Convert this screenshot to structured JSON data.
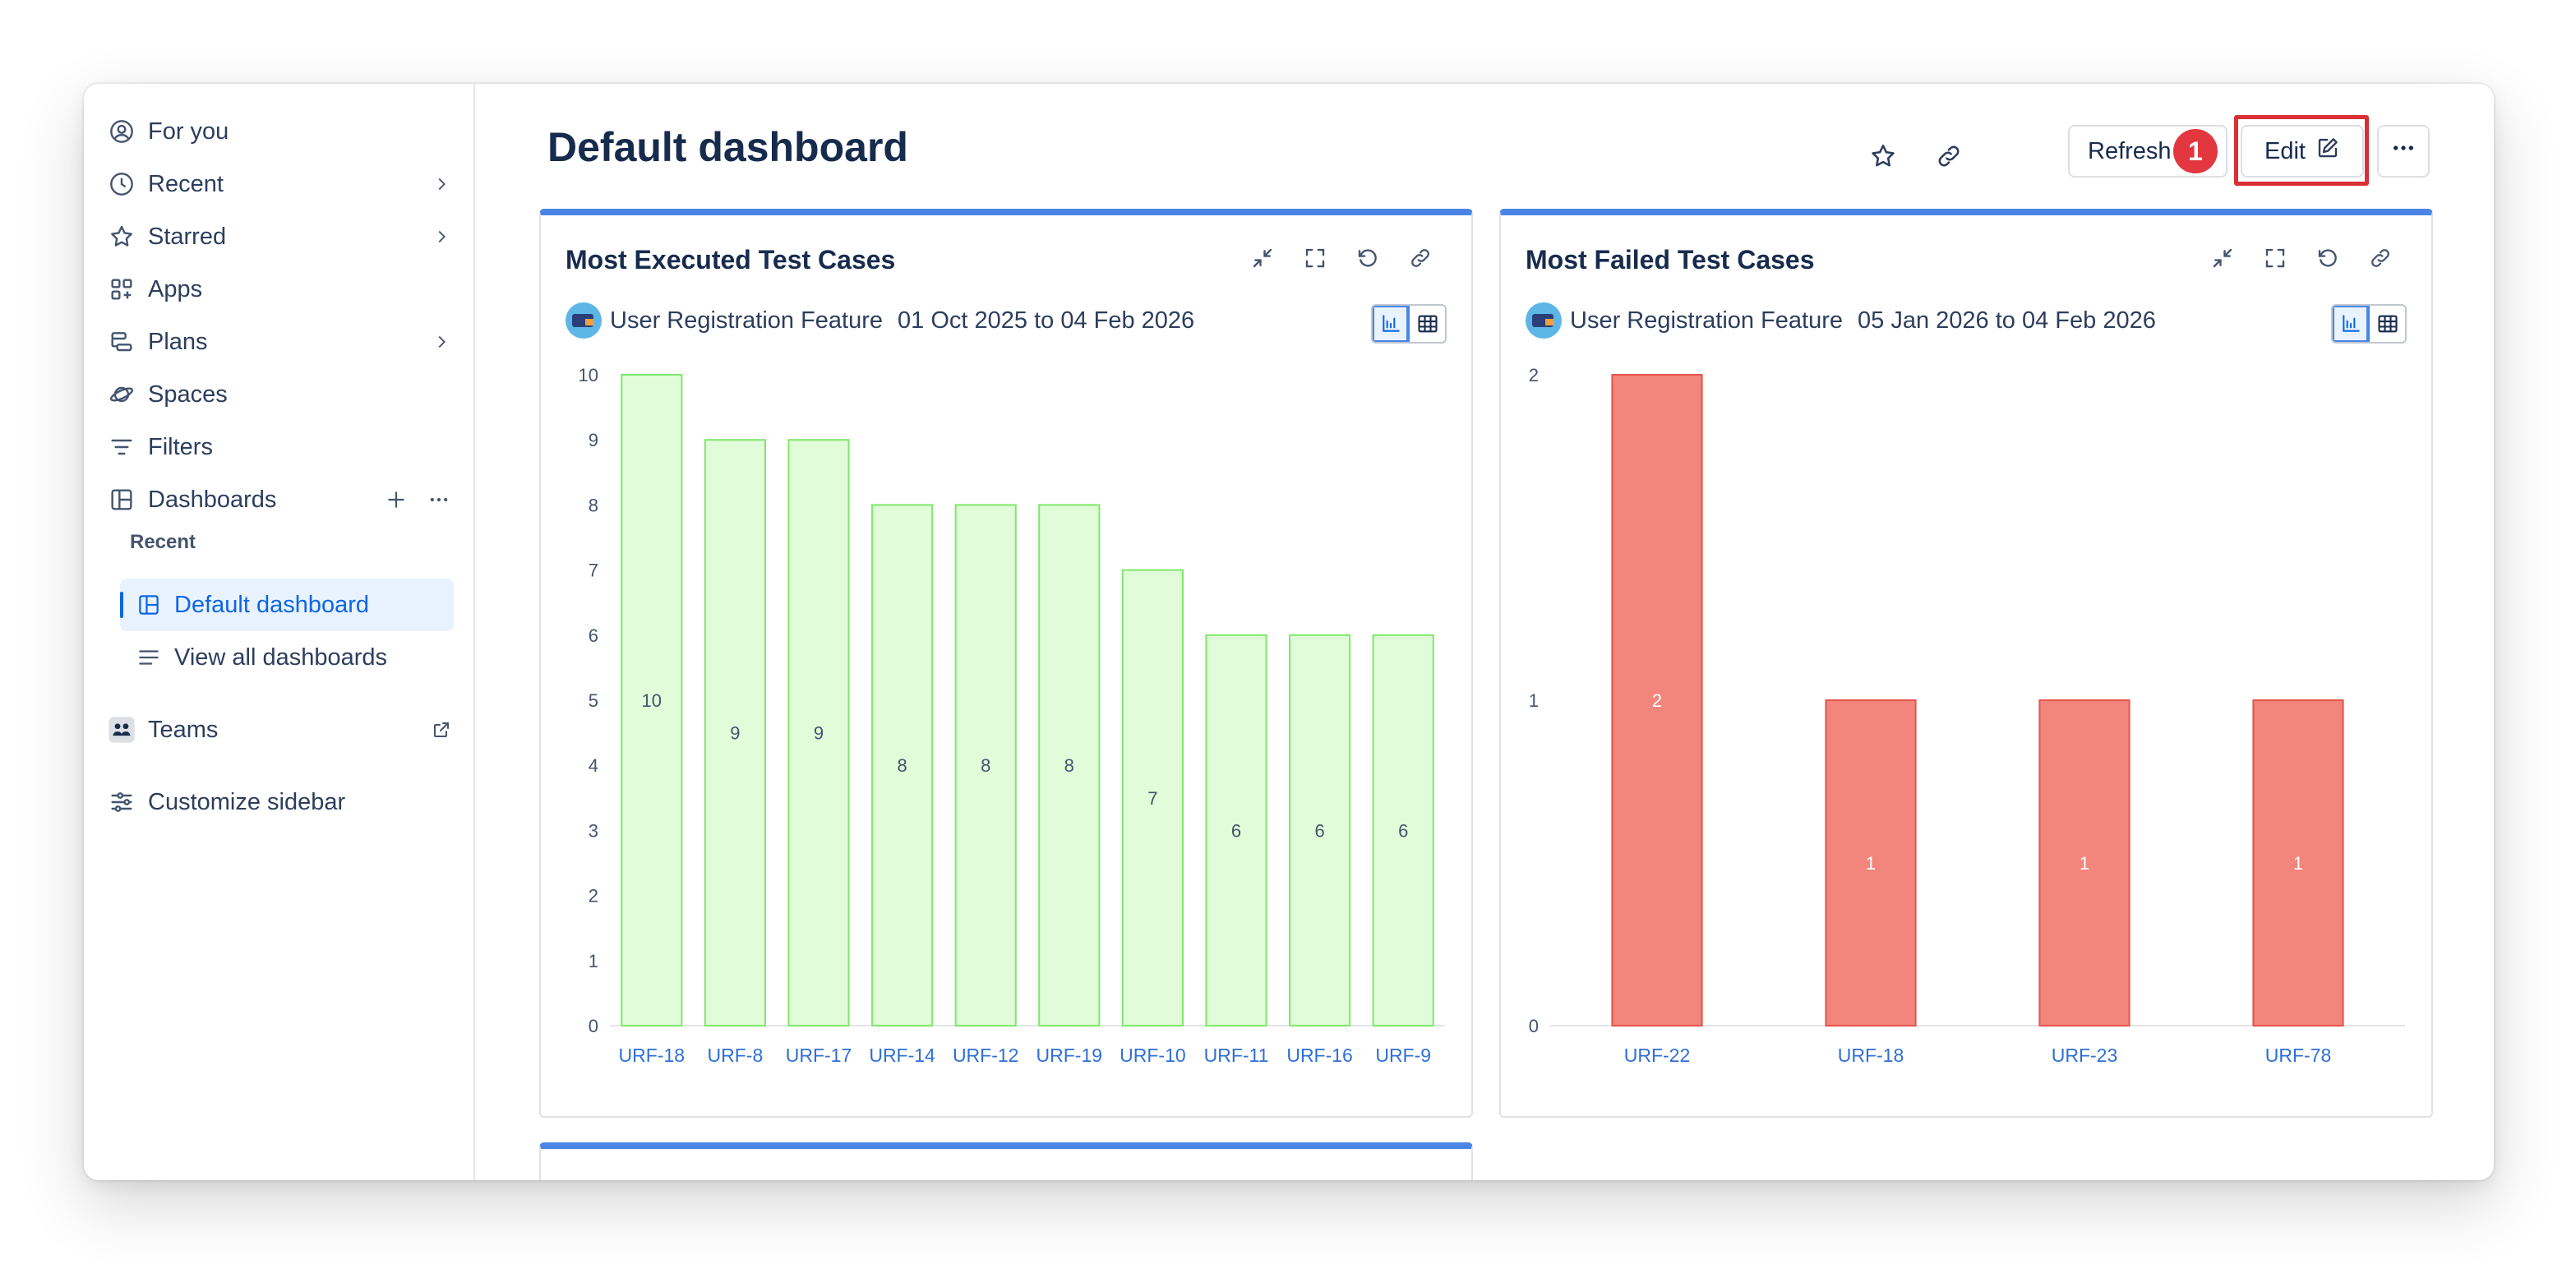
{
  "sidebar": {
    "items": [
      {
        "label": "For you",
        "icon": "user-circle-icon"
      },
      {
        "label": "Recent",
        "icon": "clock-icon"
      },
      {
        "label": "Starred",
        "icon": "star-icon"
      },
      {
        "label": "Apps",
        "icon": "apps-icon"
      },
      {
        "label": "Plans",
        "icon": "plans-icon"
      },
      {
        "label": "Spaces",
        "icon": "spaces-icon"
      },
      {
        "label": "Filters",
        "icon": "filter-icon"
      },
      {
        "label": "Dashboards",
        "icon": "dashboard-icon"
      }
    ],
    "recent_label": "Recent",
    "sub_items": [
      {
        "label": "Default dashboard",
        "icon": "dashboard-icon"
      },
      {
        "label": "View all dashboards",
        "icon": "list-icon"
      }
    ],
    "teams": "Teams",
    "customize": "Customize sidebar"
  },
  "header": {
    "title": "Default dashboard",
    "refresh_label": "Refresh",
    "edit_label": "Edit",
    "badge": "1"
  },
  "cards": [
    {
      "title": "Most Executed Test Cases",
      "project": "User Registration Feature",
      "date_range": "01 Oct 2025 to 04 Feb 2026"
    },
    {
      "title": "Most Failed Test Cases",
      "project": "User Registration Feature",
      "date_range": "05 Jan 2026 to 04 Feb 2026"
    }
  ],
  "chart_data": [
    {
      "type": "bar",
      "categories": [
        "URF-18",
        "URF-8",
        "URF-17",
        "URF-14",
        "URF-12",
        "URF-19",
        "URF-10",
        "URF-11",
        "URF-16",
        "URF-9"
      ],
      "values": [
        10,
        9,
        9,
        8,
        8,
        8,
        7,
        6,
        6,
        6
      ],
      "ylim": [
        0,
        10
      ],
      "yticks": [
        0,
        1,
        2,
        3,
        4,
        5,
        6,
        7,
        8,
        9,
        10
      ],
      "fill": "#e0fcd8",
      "stroke": "#7ee86a",
      "data_labels": true
    },
    {
      "type": "bar",
      "categories": [
        "URF-22",
        "URF-18",
        "URF-23",
        "URF-78"
      ],
      "values": [
        2,
        1,
        1,
        1
      ],
      "ylim": [
        0,
        2
      ],
      "yticks": [
        0,
        1,
        2
      ],
      "fill": "#f2857c",
      "stroke": "#e5534b",
      "data_labels": true
    }
  ]
}
